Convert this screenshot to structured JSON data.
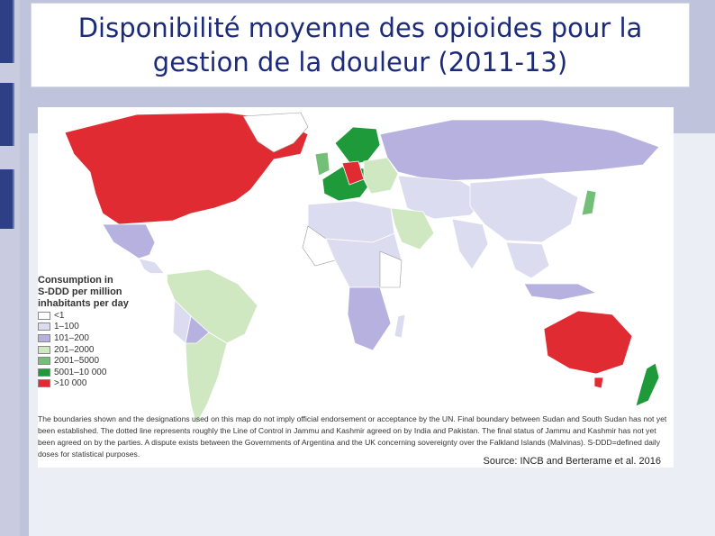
{
  "slide": {
    "title": "Disponibilité moyenne des opioides pour la gestion de la douleur (2011-13)"
  },
  "map": {
    "legend": {
      "title": "Consumption in\nS-DDD per million\ninhabitants per day",
      "items": [
        {
          "label": "<1",
          "color": "#ffffff"
        },
        {
          "label": "1–100",
          "color": "#dcdcf0"
        },
        {
          "label": "101–200",
          "color": "#b6b1de"
        },
        {
          "label": "201–2000",
          "color": "#cfe8c2"
        },
        {
          "label": "2001–5000",
          "color": "#74bf77"
        },
        {
          "label": "5001–10 000",
          "color": "#1f9a3a"
        },
        {
          "label": ">10 000",
          "color": "#e02b32"
        }
      ]
    },
    "disclaimer": "The boundaries shown and the designations used on this map do not imply official endorsement or acceptance by the UN. Final boundary between Sudan and South Sudan has not yet been established. The dotted line represents roughly the Line of Control in Jammu and Kashmir agreed on by India and Pakistan. The final status of Jammu and Kashmir has not yet been agreed on by the parties. A dispute exists between the Governments of Argentina and the UK concerning sovereignty over the Falkland Islands (Malvinas). S-DDD=defined daily doses for statistical purposes.",
    "source": "Source: INCB and Berterame et al. 2016"
  }
}
